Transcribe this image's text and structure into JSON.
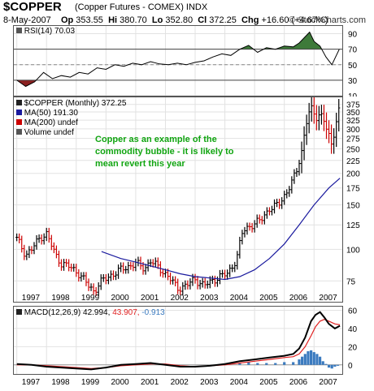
{
  "header": {
    "symbol": "$COPPER",
    "name": "(Copper Futures - COMEX) INDX",
    "date": "8-May-2007",
    "op_label": "Op",
    "op": "353.55",
    "hi_label": "Hi",
    "hi": "380.70",
    "lo_label": "Lo",
    "lo": "352.80",
    "cl_label": "Cl",
    "cl": "372.25",
    "chg_label": "Chg",
    "chg": "+16.60 (+4.67%)",
    "watermark": "© StockCharts.com"
  },
  "legends": {
    "rsi": "RSI(14) 70.03",
    "price_main": "$COPPER (Monthly) 372.25",
    "ma50": "MA(50) 191.30",
    "ma200": "MA(200) undef",
    "volume": "Volume undef",
    "macd_label": "MACD(12,26,9)",
    "macd_v1": "42.994,",
    "macd_v2": "43.907,",
    "macd_v3": "-0.913"
  },
  "annotation": {
    "line1": "Copper as an example of the",
    "line2": "commodity bubble - it is likely to",
    "line3": "mean revert this year"
  },
  "colors": {
    "rsi_fill_over": "#3e7a3a",
    "rsi_fill_under": "#8b2020",
    "ma50": "#1a1a9e",
    "ma200": "#cc0000",
    "macd_line": "#000000",
    "macd_signal": "#e02020",
    "histogram": "#3a7abf",
    "up_bar": "#000000",
    "down_bar": "#cc0000",
    "annotation": "#11a511"
  },
  "chart_data": [
    {
      "type": "line",
      "panel": "rsi",
      "ylim": [
        10,
        100
      ],
      "ticks": [
        10,
        30,
        50,
        70,
        90
      ],
      "ref_lines": [
        30,
        50,
        70
      ],
      "x": [
        1996.5,
        1996.8,
        1997.1,
        1997.4,
        1997.7,
        1998.0,
        1998.3,
        1998.6,
        1998.9,
        1999.2,
        1999.5,
        1999.8,
        2000.1,
        2000.4,
        2000.7,
        2001.0,
        2001.3,
        2001.6,
        2001.9,
        2002.2,
        2002.5,
        2002.8,
        2003.1,
        2003.4,
        2003.7,
        2004.0,
        2004.3,
        2004.6,
        2004.9,
        2005.2,
        2005.5,
        2005.8,
        2006.0,
        2006.2,
        2006.35,
        2006.5,
        2006.7,
        2006.9,
        2007.1,
        2007.35
      ],
      "values": [
        30,
        22,
        28,
        40,
        32,
        36,
        34,
        40,
        38,
        46,
        44,
        50,
        48,
        52,
        50,
        54,
        51,
        50,
        52,
        50,
        53,
        55,
        60,
        64,
        62,
        70,
        75,
        66,
        72,
        70,
        74,
        73,
        78,
        86,
        92,
        80,
        74,
        60,
        50,
        70
      ]
    },
    {
      "type": "ohlc",
      "panel": "price",
      "scale": "log",
      "ylim": [
        62,
        400
      ],
      "ticks": [
        75,
        100,
        125,
        150,
        175,
        200,
        225,
        250,
        275,
        300,
        325,
        350,
        375
      ],
      "xlim": [
        1996.4,
        2007.45
      ],
      "x_ticks": [
        "1997",
        "1998",
        "1999",
        "2000",
        "2001",
        "2002",
        "2003",
        "2004",
        "2005",
        "2006",
        "2007"
      ],
      "close_path": {
        "x": [
          1996.5,
          1996.8,
          1997.0,
          1997.3,
          1997.5,
          1997.8,
          1998.0,
          1998.3,
          1998.6,
          1998.9,
          1999.1,
          1999.3,
          1999.6,
          1999.9,
          2000.2,
          2000.5,
          2000.8,
          2001.0,
          2001.3,
          2001.6,
          2001.9,
          2002.2,
          2002.5,
          2002.8,
          2003.0,
          2003.3,
          2003.6,
          2003.9,
          2004.1,
          2004.4,
          2004.7,
          2005.0,
          2005.3,
          2005.6,
          2005.9,
          2006.1,
          2006.3,
          2006.4,
          2006.55,
          2006.7,
          2006.85,
          2007.0,
          2007.1,
          2007.25,
          2007.37
        ],
        "values": [
          110,
          95,
          100,
          112,
          115,
          95,
          88,
          85,
          80,
          72,
          68,
          74,
          78,
          82,
          85,
          88,
          84,
          90,
          84,
          78,
          70,
          72,
          76,
          72,
          74,
          78,
          80,
          92,
          118,
          125,
          130,
          145,
          150,
          170,
          200,
          250,
          345,
          360,
          330,
          350,
          320,
          280,
          250,
          330,
          372
        ]
      },
      "ma50": {
        "x": [
          1999.35,
          2000.0,
          2000.5,
          2001.0,
          2001.5,
          2002.0,
          2002.5,
          2003.0,
          2003.5,
          2004.0,
          2004.5,
          2005.0,
          2005.5,
          2006.0,
          2006.5,
          2007.0,
          2007.37
        ],
        "values": [
          98,
          92,
          89,
          86,
          83,
          80,
          78,
          77,
          76,
          78,
          83,
          92,
          105,
          125,
          150,
          175,
          191.3
        ]
      }
    },
    {
      "type": "line",
      "panel": "macd",
      "ylim": [
        -10,
        64
      ],
      "ticks": [
        0,
        20,
        40,
        60
      ],
      "series": [
        {
          "name": "MACD",
          "x": [
            1996.5,
            1997.0,
            1997.5,
            1998.0,
            1998.5,
            1999.0,
            1999.5,
            2000.0,
            2000.5,
            2001.0,
            2001.5,
            2002.0,
            2002.5,
            2003.0,
            2003.5,
            2004.0,
            2004.5,
            2005.0,
            2005.5,
            2005.8,
            2006.0,
            2006.2,
            2006.4,
            2006.55,
            2006.7,
            2006.85,
            2007.0,
            2007.2,
            2007.37
          ],
          "values": [
            1,
            0,
            -2,
            -3,
            -4,
            -5,
            -3,
            0,
            1,
            2,
            0,
            -2,
            -2,
            -1,
            1,
            4,
            6,
            8,
            10,
            12,
            18,
            30,
            48,
            55,
            58,
            52,
            45,
            40,
            43
          ]
        },
        {
          "name": "Signal",
          "x": [
            1996.5,
            1997.0,
            1997.5,
            1998.0,
            1998.5,
            1999.0,
            1999.5,
            2000.0,
            2000.5,
            2001.0,
            2001.5,
            2002.0,
            2002.5,
            2003.0,
            2003.5,
            2004.0,
            2004.5,
            2005.0,
            2005.5,
            2005.8,
            2006.0,
            2006.2,
            2006.4,
            2006.55,
            2006.7,
            2006.85,
            2007.0,
            2007.2,
            2007.37
          ],
          "values": [
            0,
            0,
            -1,
            -2,
            -3,
            -4,
            -3,
            -1,
            0,
            1,
            1,
            -1,
            -2,
            -1,
            0,
            2,
            4,
            6,
            8,
            9,
            12,
            20,
            32,
            42,
            48,
            50,
            48,
            45,
            44
          ]
        }
      ],
      "histogram": {
        "x": [
          2004.0,
          2004.3,
          2004.6,
          2004.9,
          2005.2,
          2005.5,
          2005.8,
          2006.0,
          2006.1,
          2006.2,
          2006.3,
          2006.4,
          2006.5,
          2006.6,
          2006.7,
          2006.8,
          2006.9,
          2007.0,
          2007.1,
          2007.2,
          2007.3
        ],
        "values": [
          2,
          3,
          2,
          2,
          2,
          3,
          3,
          6,
          9,
          12,
          15,
          16,
          14,
          12,
          9,
          4,
          1,
          -3,
          -4,
          -2,
          -1
        ]
      }
    }
  ]
}
